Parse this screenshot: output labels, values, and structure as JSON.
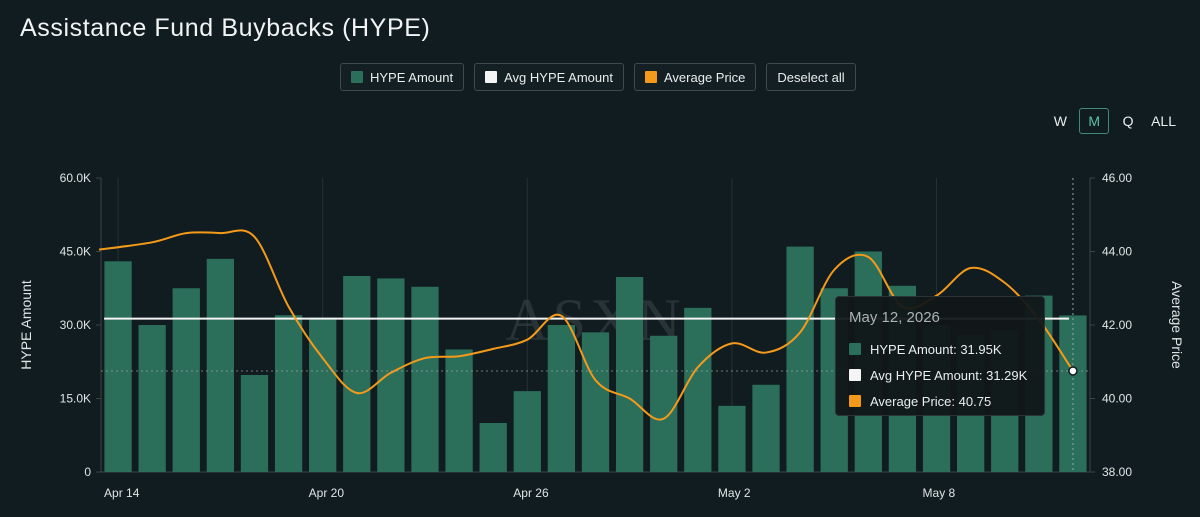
{
  "title": "Assistance Fund Buybacks (HYPE)",
  "legend": {
    "items": [
      {
        "label": "HYPE Amount",
        "color": "#2b6f5b"
      },
      {
        "label": "Avg HYPE Amount",
        "color": "#f4f4f4"
      },
      {
        "label": "Average Price",
        "color": "#f49a1a"
      }
    ],
    "deselect_label": "Deselect all"
  },
  "periods": {
    "options": [
      "W",
      "M",
      "Q",
      "ALL"
    ],
    "selected": "M"
  },
  "tooltip": {
    "date": "May 12, 2026",
    "rows": [
      {
        "label": "HYPE Amount: 31.95K",
        "color": "#2b6f5b"
      },
      {
        "label": "Avg HYPE Amount: 31.29K",
        "color": "#f4f4f4"
      },
      {
        "label": "Average Price: 40.75",
        "color": "#f49a1a"
      }
    ]
  },
  "watermark": "ASXN",
  "chart_data": {
    "type": "bar",
    "title": "Assistance Fund Buybacks (HYPE)",
    "ylabel_left": "HYPE Amount",
    "ylabel_right": "Average Price",
    "ylim_left": [
      0,
      60000
    ],
    "ylim_right": [
      38,
      46
    ],
    "left_ticks": [
      "0",
      "15.0K",
      "30.0K",
      "45.0K",
      "60.0K"
    ],
    "right_ticks": [
      "38.00",
      "40.00",
      "42.00",
      "44.00",
      "46.00"
    ],
    "x_tick_labels": [
      "Apr 14",
      "Apr 20",
      "Apr 26",
      "May 2",
      "May 8"
    ],
    "categories": [
      "Apr 14",
      "Apr 15",
      "Apr 16",
      "Apr 17",
      "Apr 18",
      "Apr 19",
      "Apr 20",
      "Apr 21",
      "Apr 22",
      "Apr 23",
      "Apr 24",
      "Apr 25",
      "Apr 26",
      "Apr 27",
      "Apr 28",
      "Apr 29",
      "Apr 30",
      "May 1",
      "May 2",
      "May 3",
      "May 4",
      "May 5",
      "May 6",
      "May 7",
      "May 8",
      "May 9",
      "May 10",
      "May 11",
      "May 12"
    ],
    "series": [
      {
        "name": "HYPE Amount",
        "type": "bar",
        "axis": "left",
        "color": "#2b6f5b",
        "values": [
          43000,
          30000,
          37500,
          43500,
          19800,
          32000,
          31500,
          40000,
          39500,
          37800,
          25000,
          10000,
          16500,
          30000,
          28500,
          39800,
          27800,
          33500,
          13500,
          17800,
          46000,
          37500,
          45000,
          38000,
          30000,
          28000,
          29000,
          36000,
          31950
        ]
      },
      {
        "name": "Avg HYPE Amount",
        "type": "line",
        "axis": "left",
        "color": "#f4f4f4",
        "values": [
          31290,
          31290,
          31290,
          31290,
          31290,
          31290,
          31290,
          31290,
          31290,
          31290,
          31290,
          31290,
          31290,
          31290,
          31290,
          31290,
          31290,
          31290,
          31290,
          31290,
          31290,
          31290,
          31290,
          31290,
          31290,
          31290,
          31290,
          31290,
          31290
        ]
      },
      {
        "name": "Average Price",
        "type": "line",
        "axis": "right",
        "color": "#f49a1a",
        "values": [
          44.05,
          44.25,
          44.5,
          44.5,
          44.4,
          42.5,
          41.1,
          40.15,
          40.7,
          41.1,
          41.15,
          41.35,
          41.6,
          42.25,
          40.5,
          40.0,
          39.45,
          40.85,
          41.5,
          41.25,
          41.8,
          43.5,
          43.85,
          42.5,
          42.8,
          43.55,
          43.15,
          42.15,
          40.75
        ]
      }
    ],
    "highlight_index": 28,
    "grid": "vertical"
  }
}
